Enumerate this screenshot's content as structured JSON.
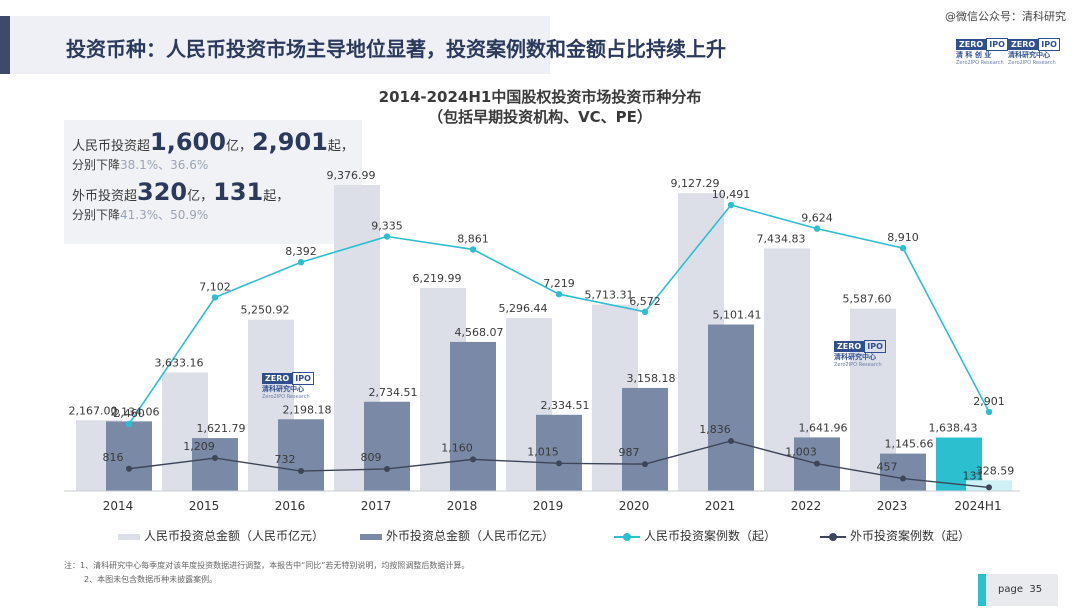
{
  "slide": {
    "title": "投资币种：人民币投资市场主导地位显著，投资案例数和金额占比持续上升",
    "watermark": "@微信公众号：清科研究",
    "page_label": "page",
    "page_number": "35"
  },
  "logo": {
    "zero": "ZERO",
    "ipo": "IPO",
    "name_cn_header_1": "清 科 创 业",
    "name_cn_header_2": "清科研究中心",
    "name_cn": "清科研究中心",
    "name_en": "Zero2IPO Research"
  },
  "info_box": {
    "rmb_prefix": "人民币投资超",
    "rmb_amount": "1,600",
    "unit_yi": "亿，",
    "rmb_count": "2,901",
    "unit_qi": "起，",
    "decline_prefix": "分别下降",
    "rmb_decline": "38.1%、36.6%",
    "fx_prefix": "外币投资超",
    "fx_amount": "320",
    "fx_count": "131",
    "fx_decline": "41.3%、50.9%"
  },
  "chart_data": {
    "type": "bar",
    "title": "2014-2024H1中国股权投资市场投资币种分布",
    "subtitle": "（包括早期投资机构、VC、PE）",
    "categories": [
      "2014",
      "2015",
      "2016",
      "2017",
      "2018",
      "2019",
      "2020",
      "2021",
      "2022",
      "2023",
      "2024H1"
    ],
    "series": [
      {
        "name": "人民币投资总金额（人民币亿元）",
        "kind": "bar",
        "axis": "amount",
        "color": "#dcdfe8",
        "values": [
          2167.0,
          3633.16,
          5250.92,
          9376.99,
          6219.99,
          5296.44,
          5713.31,
          9127.29,
          7434.83,
          5587.6,
          1638.43
        ]
      },
      {
        "name": "外币投资总金额（人民币亿元）",
        "kind": "bar",
        "axis": "amount",
        "color": "#7a8aa6",
        "values": [
          2134.06,
          1621.79,
          2198.18,
          2734.51,
          4568.07,
          2334.51,
          3158.18,
          5101.41,
          1641.96,
          1145.66,
          328.59
        ]
      },
      {
        "name": "人民币投资案例数（起）",
        "kind": "line",
        "axis": "count",
        "color": "#2bbfcf",
        "values": [
          2460,
          7102,
          8392,
          9335,
          8861,
          7219,
          6572,
          10491,
          9624,
          8910,
          2901
        ]
      },
      {
        "name": "外币投资案例数（起）",
        "kind": "line",
        "axis": "count",
        "color": "#3d4558",
        "values": [
          816,
          1209,
          732,
          809,
          1160,
          1015,
          987,
          1836,
          1003,
          457,
          131
        ]
      }
    ],
    "labels": {
      "rmb_amount": [
        "2,167.00",
        "3,633.16",
        "5,250.92",
        "9,376.99",
        "6,219.99",
        "5,296.44",
        "5,713.31",
        "9,127.29",
        "7,434.83",
        "5,587.60",
        "1,638.43"
      ],
      "fx_amount": [
        "2,134.06",
        "1,621.79",
        "2,198.18",
        "2,734.51",
        "4,568.07",
        "2,334.51",
        "3,158.18",
        "5,101.41",
        "1,641.96",
        "1,145.66",
        "328.59"
      ],
      "rmb_count": [
        "2,460",
        "7,102",
        "8,392",
        "9,335",
        "8,861",
        "7,219",
        "6,572",
        "10,491",
        "9,624",
        "8,910",
        "2,901"
      ],
      "fx_count": [
        "816",
        "1,209",
        "732",
        "809",
        "1,160",
        "1,015",
        "987",
        "1,836",
        "1,003",
        "457",
        "131"
      ]
    },
    "highlight_colors": {
      "rmb_amount_last": "#2bbfcf",
      "fx_amount_last": "#cdf1f4"
    },
    "grid": false,
    "legend_position": "bottom"
  },
  "notes": {
    "line1": "注：1、清科研究中心每季度对该年度投资数据进行调整，本报告中“同比”若无特别说明，均按照调整后数据计算。",
    "line2": "2、本图未包含数据币种未披露案例。"
  }
}
